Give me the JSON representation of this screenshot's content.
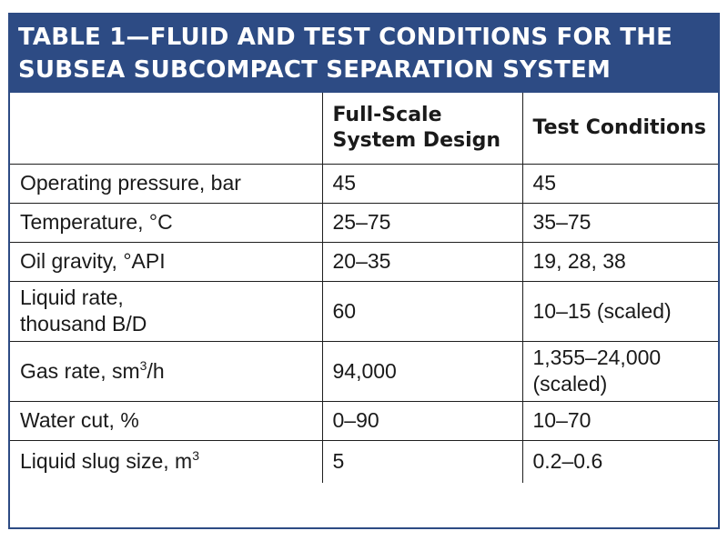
{
  "title": {
    "line1": "TABLE 1—FLUID AND TEST CONDITIONS FOR THE",
    "line2": "SUBSEA SUBCOMPACT SEPARATION SYSTEM"
  },
  "columns": {
    "col2_line1": "Full-Scale",
    "col2_line2": "System Design",
    "col3": "Test Conditions"
  },
  "rows": [
    {
      "label": "Operating pressure, bar",
      "design": "45",
      "test": "45"
    },
    {
      "label": "Temperature, °C",
      "design": "25–75",
      "test": "35–75"
    },
    {
      "label": "Oil gravity, °API",
      "design": "20–35",
      "test": "19, 28, 38"
    },
    {
      "label_line1": "Liquid rate,",
      "label_line2": "thousand B/D",
      "design": "60",
      "test": "10–15 (scaled)"
    },
    {
      "label": "Gas rate, sm",
      "label_sup": "3",
      "label_suffix": "/h",
      "design": "94,000",
      "test_line1": "1,355–24,000",
      "test_line2": "(scaled)"
    },
    {
      "label": "Water cut, %",
      "design": "0–90",
      "test": "10–70"
    },
    {
      "label": "Liquid slug size, m",
      "label_sup": "3",
      "design": "5",
      "test": "0.2–0.6"
    }
  ]
}
